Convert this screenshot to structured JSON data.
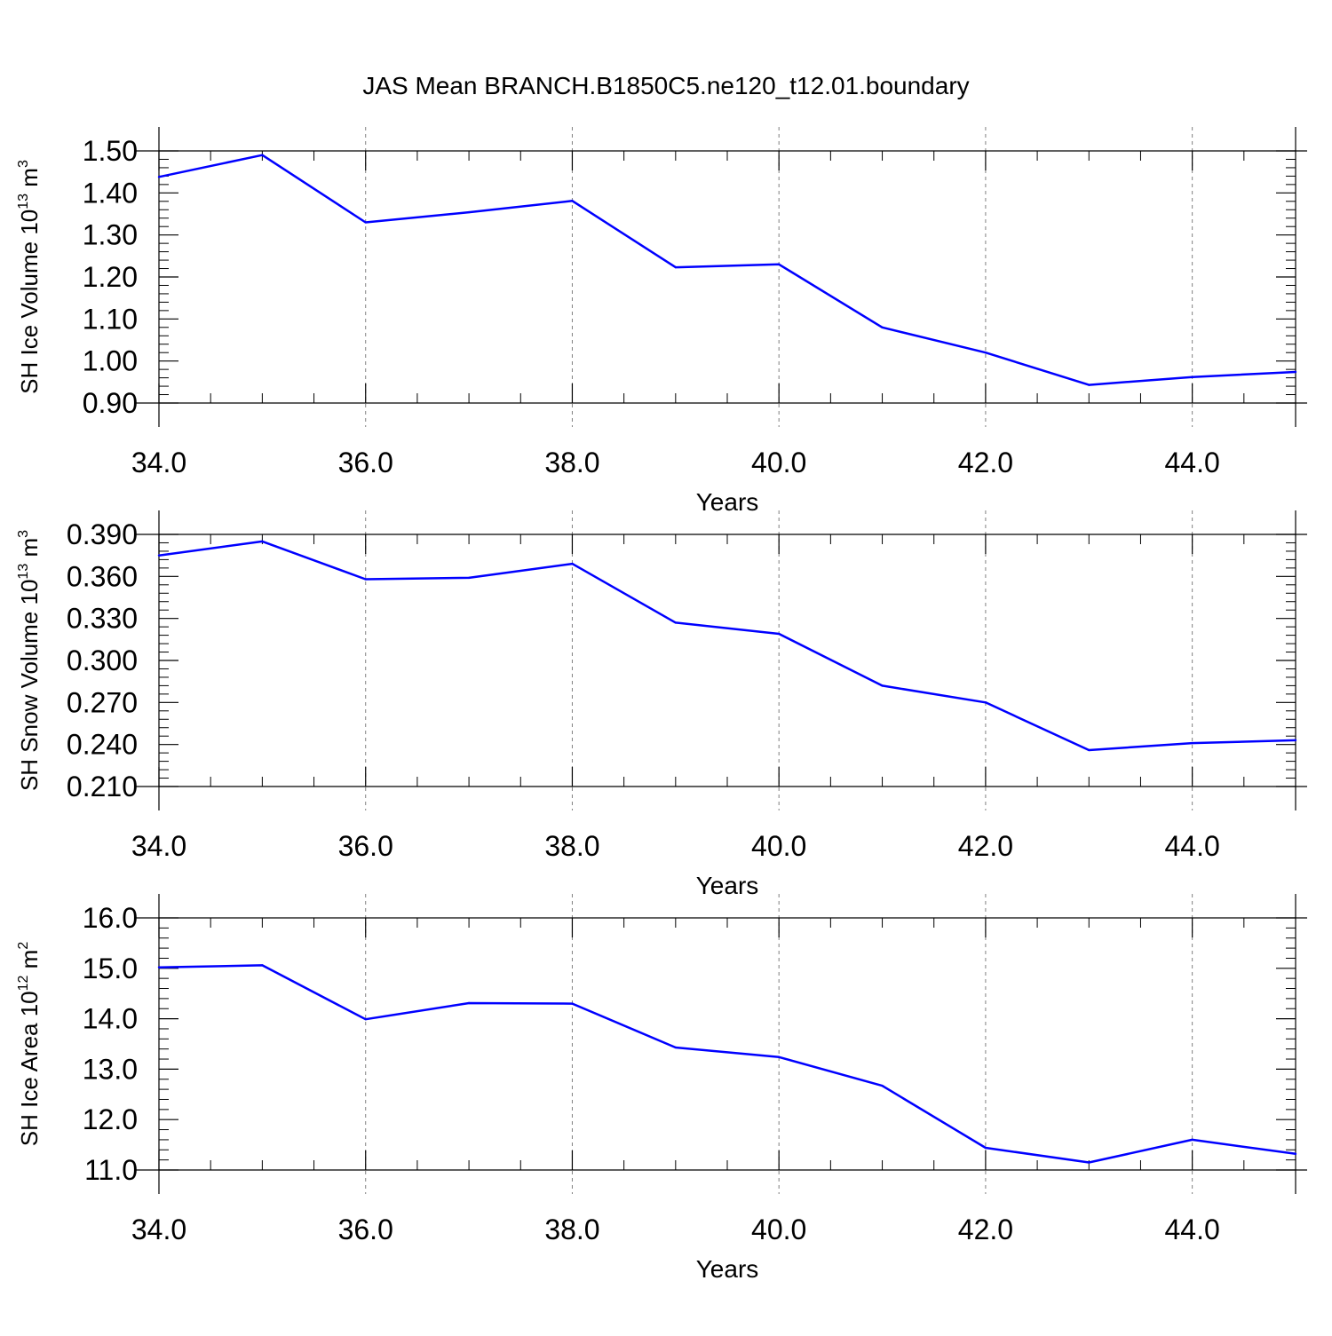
{
  "figure": {
    "title": "JAS Mean BRANCH.B1850C5.ne120_t12.01.boundary"
  },
  "colors": {
    "series": "#0000ff",
    "axis": "#000000",
    "grid": "#808080",
    "background": "#ffffff"
  },
  "chart_data": [
    {
      "type": "line",
      "title": "JAS Mean BRANCH.B1850C5.ne120_t12.01.boundary",
      "ylabel_main": "SH Ice Volume 10",
      "ylabel_sup": "13",
      "ylabel_unit": " m",
      "ylabel_unit_sup": "3",
      "xlabel": "Years",
      "xlim": [
        34,
        45
      ],
      "ylim": [
        0.9,
        1.5
      ],
      "xticks": [
        34,
        36,
        38,
        40,
        42,
        44
      ],
      "xtick_labels": [
        "34.0",
        "36.0",
        "38.0",
        "40.0",
        "42.0",
        "44.0"
      ],
      "yticks": [
        0.9,
        1.0,
        1.1,
        1.2,
        1.3,
        1.4,
        1.5
      ],
      "ytick_labels": [
        "0.90",
        "1.00",
        "1.10",
        "1.20",
        "1.30",
        "1.40",
        "1.50"
      ],
      "y_minor_step": 0.02,
      "grid": "vertical dashed at major x ticks",
      "x": [
        34,
        35,
        36,
        37,
        38,
        39,
        40,
        41,
        42,
        43,
        44,
        45
      ],
      "series": [
        {
          "name": "SH Ice Volume",
          "values": [
            1.438,
            1.49,
            1.33,
            1.354,
            1.381,
            1.223,
            1.23,
            1.08,
            1.02,
            0.943,
            0.962,
            0.974
          ]
        }
      ]
    },
    {
      "type": "line",
      "ylabel_main": "SH Snow Volume 10",
      "ylabel_sup": "13",
      "ylabel_unit": " m",
      "ylabel_unit_sup": "3",
      "xlabel": "Years",
      "xlim": [
        34,
        45
      ],
      "ylim": [
        0.21,
        0.39
      ],
      "xticks": [
        34,
        36,
        38,
        40,
        42,
        44
      ],
      "xtick_labels": [
        "34.0",
        "36.0",
        "38.0",
        "40.0",
        "42.0",
        "44.0"
      ],
      "yticks": [
        0.21,
        0.24,
        0.27,
        0.3,
        0.33,
        0.36,
        0.39
      ],
      "ytick_labels": [
        "0.210",
        "0.240",
        "0.270",
        "0.300",
        "0.330",
        "0.360",
        "0.390"
      ],
      "y_minor_step": 0.006,
      "grid": "vertical dashed at major x ticks",
      "x": [
        34,
        35,
        36,
        37,
        38,
        39,
        40,
        41,
        42,
        43,
        44,
        45
      ],
      "series": [
        {
          "name": "SH Snow Volume",
          "values": [
            0.375,
            0.385,
            0.358,
            0.359,
            0.369,
            0.327,
            0.319,
            0.282,
            0.27,
            0.236,
            0.241,
            0.243
          ]
        }
      ]
    },
    {
      "type": "line",
      "ylabel_main": "SH Ice Area 10",
      "ylabel_sup": "12",
      "ylabel_unit": " m",
      "ylabel_unit_sup": "2",
      "xlabel": "Years",
      "xlim": [
        34,
        45
      ],
      "ylim": [
        11.0,
        16.0
      ],
      "xticks": [
        34,
        36,
        38,
        40,
        42,
        44
      ],
      "xtick_labels": [
        "34.0",
        "36.0",
        "38.0",
        "40.0",
        "42.0",
        "44.0"
      ],
      "yticks": [
        11.0,
        12.0,
        13.0,
        14.0,
        15.0,
        16.0
      ],
      "ytick_labels": [
        "11.0",
        "12.0",
        "13.0",
        "14.0",
        "15.0",
        "16.0"
      ],
      "y_minor_step": 0.2,
      "grid": "vertical dashed at major x ticks",
      "x": [
        34,
        35,
        36,
        37,
        38,
        39,
        40,
        41,
        42,
        43,
        44,
        45
      ],
      "series": [
        {
          "name": "SH Ice Area",
          "values": [
            15.02,
            15.06,
            13.99,
            14.31,
            14.3,
            13.43,
            13.24,
            12.67,
            11.44,
            11.15,
            11.6,
            11.32
          ]
        }
      ]
    }
  ]
}
